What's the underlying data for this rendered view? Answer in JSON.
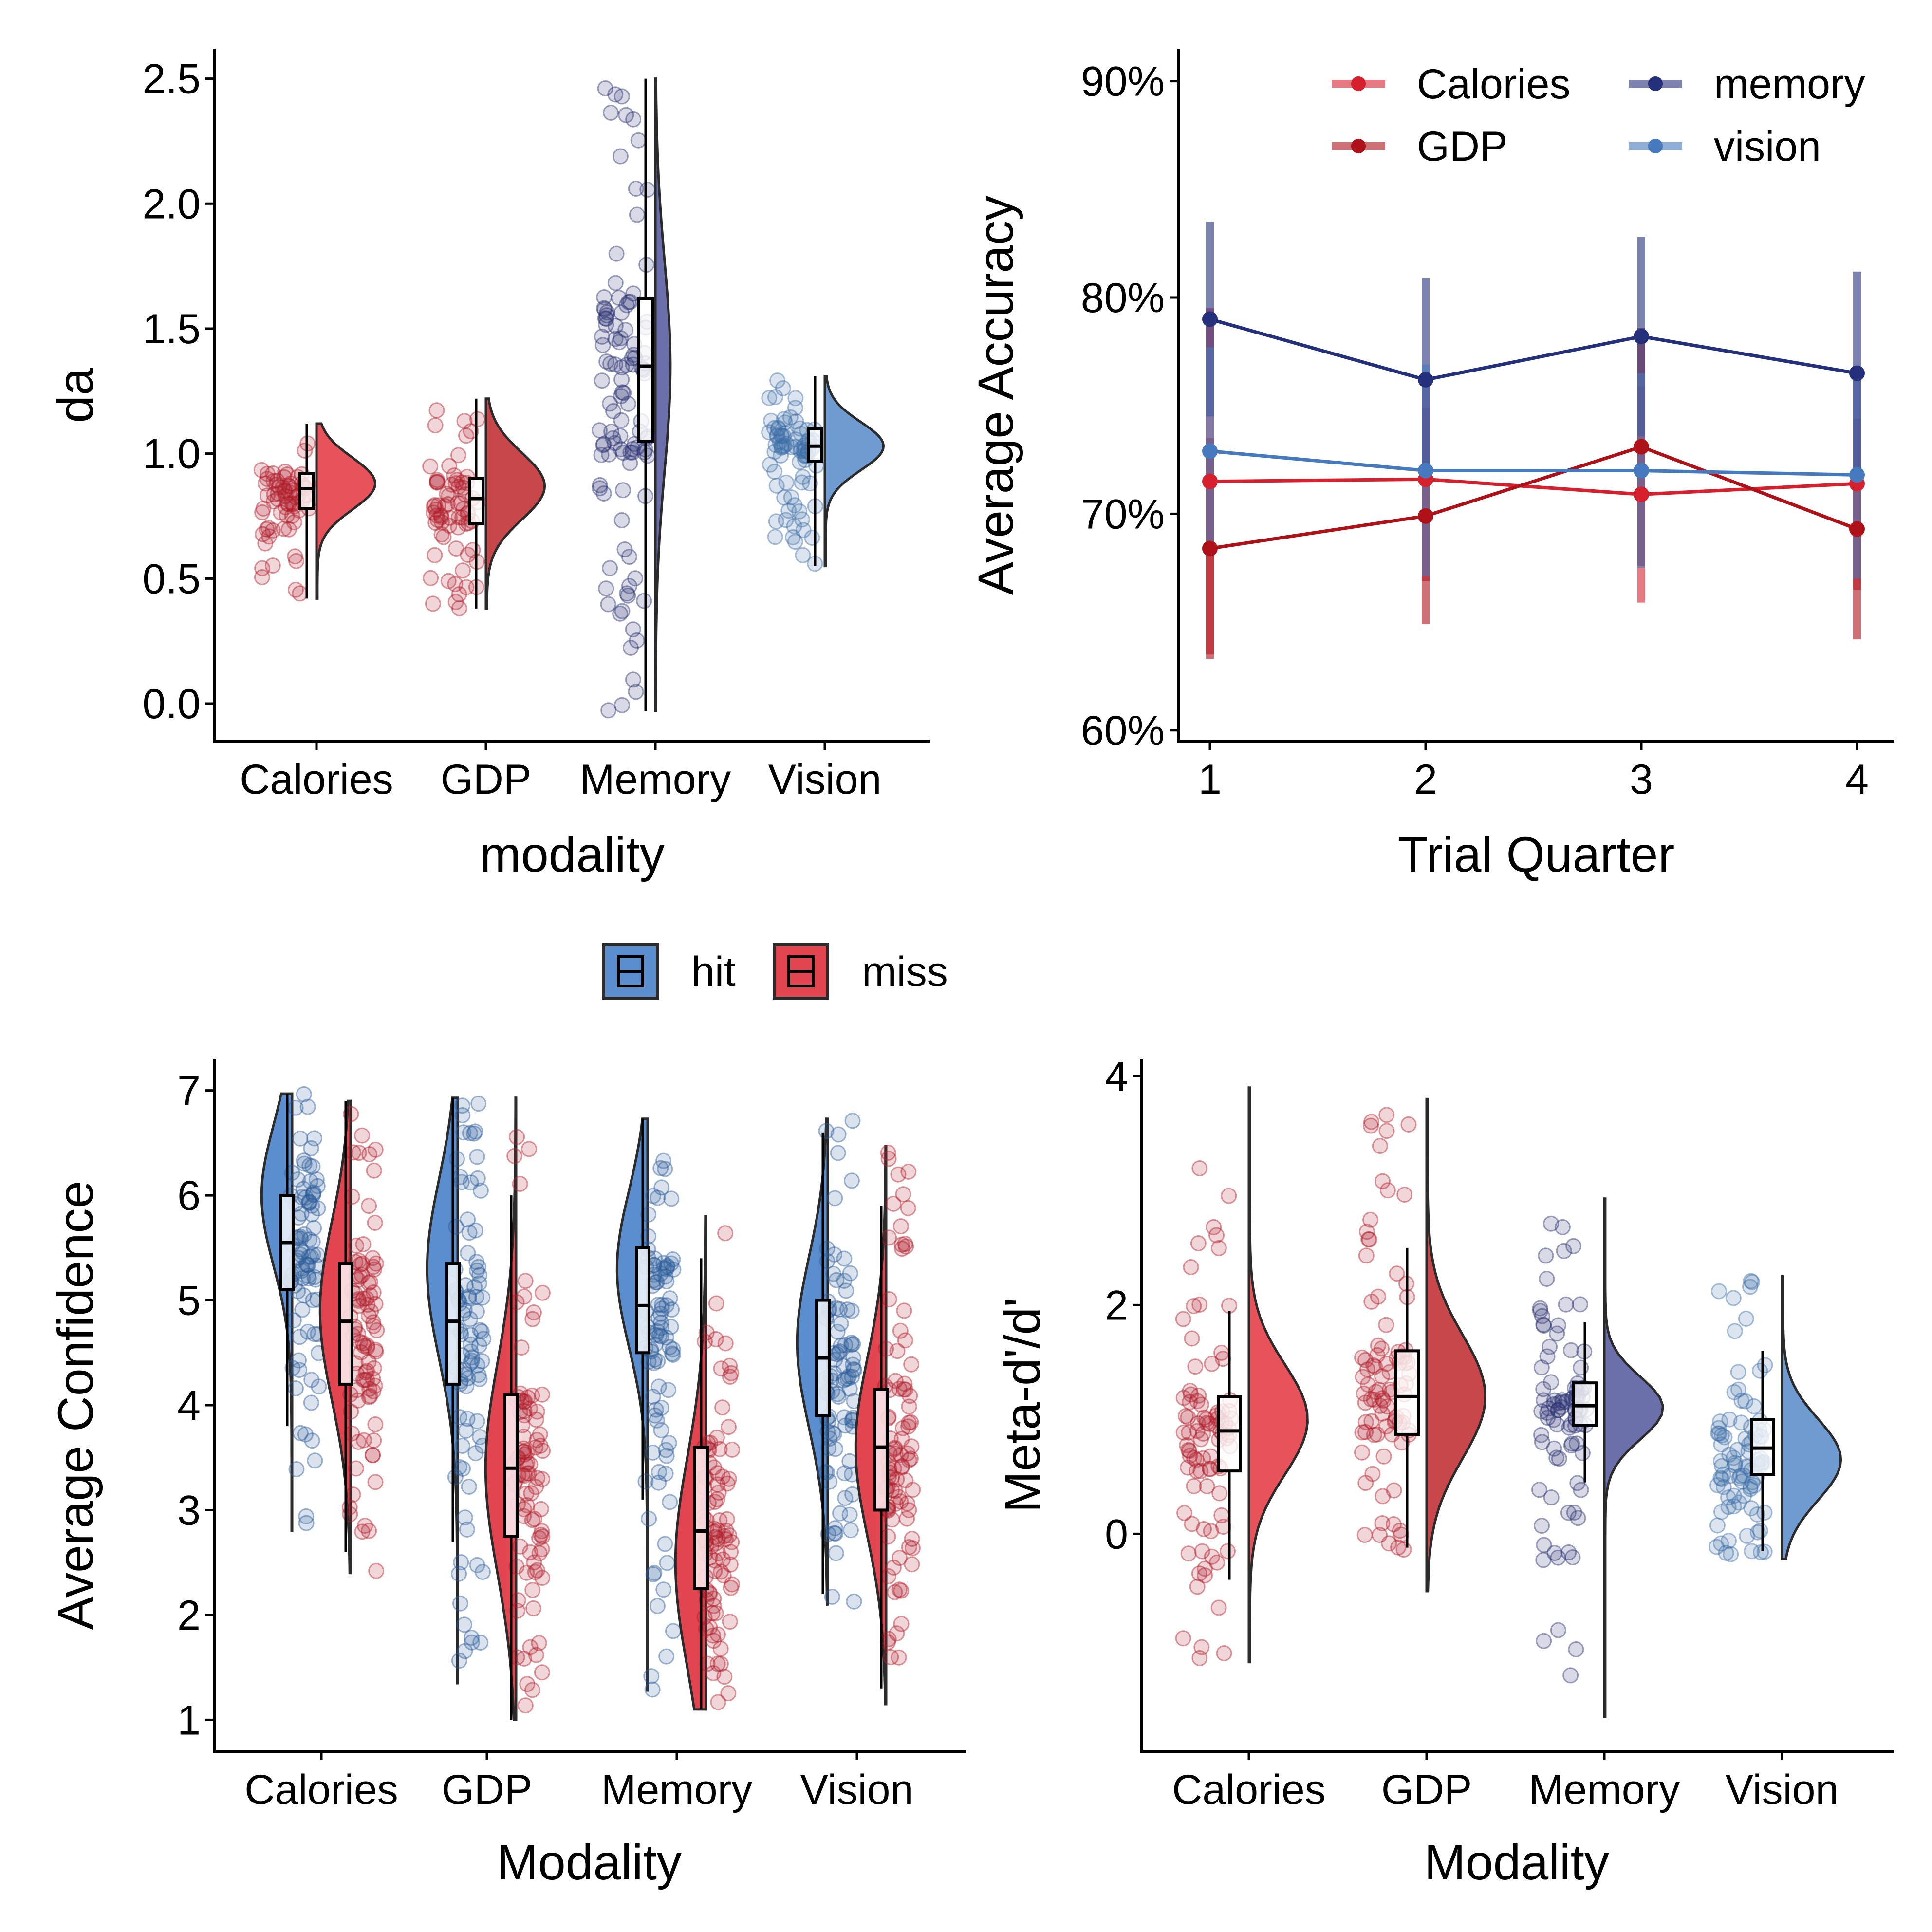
{
  "colors": {
    "calories": "#E8525A",
    "gdp": "#C8474B",
    "memory": "#6B6FAA",
    "vision": "#6F9BD0",
    "hit": "#5B8ECF",
    "miss": "#E24450",
    "line_calories": "#D7202E",
    "line_gdp": "#AE1117",
    "line_memory": "#25307D",
    "line_vision": "#4679BE"
  },
  "chart_data": [
    {
      "type": "raincloud",
      "xlabel": "modality",
      "ylabel": "da",
      "categories": [
        "Calories",
        "GDP",
        "Memory",
        "Vision"
      ],
      "ylim": [
        -0.15,
        2.62
      ],
      "yticks": [
        0.0,
        0.5,
        1.0,
        1.5,
        2.0,
        2.5
      ],
      "ytick_labels": [
        "0.0",
        "0.5",
        "1.0",
        "1.5",
        "2.0",
        "2.5"
      ],
      "series": [
        {
          "category": "Calories",
          "color_key": "calories",
          "min": 0.42,
          "q1": 0.78,
          "median": 0.86,
          "q3": 0.92,
          "max": 1.12,
          "violin_min": 0.42,
          "violin_max": 1.12,
          "mode": 0.88,
          "n_points": 70
        },
        {
          "category": "GDP",
          "color_key": "gdp",
          "min": 0.38,
          "q1": 0.72,
          "median": 0.82,
          "q3": 0.9,
          "max": 1.22,
          "violin_min": 0.38,
          "violin_max": 1.22,
          "mode": 0.87,
          "n_points": 70
        },
        {
          "category": "Memory",
          "color_key": "memory",
          "min": -0.03,
          "q1": 1.05,
          "median": 1.35,
          "q3": 1.62,
          "max": 2.5,
          "violin_min": -0.03,
          "violin_max": 2.5,
          "mode": 1.35,
          "n_points": 110
        },
        {
          "category": "Vision",
          "color_key": "vision",
          "min": 0.55,
          "q1": 0.97,
          "median": 1.03,
          "q3": 1.1,
          "max": 1.31,
          "violin_min": 0.55,
          "violin_max": 1.31,
          "mode": 1.03,
          "n_points": 80
        }
      ]
    },
    {
      "type": "line",
      "xlabel": "Trial Quarter",
      "ylabel": "Average Accuracy",
      "x": [
        1,
        2,
        3,
        4
      ],
      "ylim": [
        59.5,
        91.5
      ],
      "yticks": [
        60,
        70,
        80,
        90
      ],
      "ytick_labels": [
        "60%",
        "70%",
        "80%",
        "90%"
      ],
      "xticks": [
        1,
        2,
        3,
        4
      ],
      "xtick_labels": [
        "1",
        "2",
        "3",
        "4"
      ],
      "legend_position": "top-right",
      "series": [
        {
          "name": "Calories",
          "color_key": "line_calories",
          "values": [
            71.5,
            71.6,
            70.9,
            71.4
          ],
          "lower": [
            63.5,
            66.9,
            65.9,
            66.5
          ],
          "upper": [
            79.5,
            76.3,
            75.9,
            76.3
          ]
        },
        {
          "name": "GDP",
          "color_key": "line_gdp",
          "values": [
            68.4,
            69.9,
            73.1,
            69.3
          ],
          "lower": [
            63.3,
            64.9,
            67.6,
            64.2
          ],
          "upper": [
            73.5,
            74.9,
            78.6,
            74.4
          ]
        },
        {
          "name": "memory",
          "color_key": "line_memory",
          "values": [
            79.0,
            76.2,
            78.2,
            76.5
          ],
          "lower": [
            74.5,
            71.5,
            73.6,
            71.8
          ],
          "upper": [
            83.5,
            80.9,
            82.8,
            81.2
          ]
        },
        {
          "name": "vision",
          "color_key": "line_vision",
          "values": [
            72.9,
            72.0,
            72.0,
            71.8
          ],
          "lower": [
            68.1,
            67.1,
            67.5,
            67.0
          ],
          "upper": [
            77.7,
            76.9,
            76.5,
            76.6
          ]
        }
      ]
    },
    {
      "type": "raincloud",
      "xlabel": "Modality",
      "ylabel": "Average Confidence",
      "categories": [
        "Calories",
        "GDP",
        "Memory",
        "Vision"
      ],
      "ylim": [
        0.7,
        7.3
      ],
      "yticks": [
        1,
        2,
        3,
        4,
        5,
        6,
        7
      ],
      "ytick_labels": [
        "1",
        "2",
        "3",
        "4",
        "5",
        "6",
        "7"
      ],
      "legend": [
        {
          "label": "hit",
          "color_key": "hit"
        },
        {
          "label": "miss",
          "color_key": "miss"
        }
      ],
      "legend_position": "top",
      "series": [
        {
          "name": "hit",
          "category": "Calories",
          "color_key": "hit",
          "min": 3.8,
          "q1": 5.1,
          "median": 5.55,
          "q3": 6.0,
          "max": 6.97,
          "violin_min": 2.8,
          "violin_max": 6.97,
          "mode": 6.0
        },
        {
          "name": "miss",
          "category": "Calories",
          "color_key": "miss",
          "min": 2.6,
          "q1": 4.2,
          "median": 4.8,
          "q3": 5.35,
          "max": 6.9,
          "violin_min": 2.4,
          "violin_max": 6.9,
          "mode": 4.9
        },
        {
          "name": "hit",
          "category": "GDP",
          "color_key": "hit",
          "min": 2.7,
          "q1": 4.2,
          "median": 4.8,
          "q3": 5.35,
          "max": 6.93,
          "violin_min": 1.35,
          "violin_max": 6.93,
          "mode": 5.3
        },
        {
          "name": "miss",
          "category": "GDP",
          "color_key": "miss",
          "min": 1.0,
          "q1": 2.75,
          "median": 3.4,
          "q3": 4.1,
          "max": 6.0,
          "violin_min": 1.0,
          "violin_max": 6.93,
          "mode": 3.4
        },
        {
          "name": "hit",
          "category": "Memory",
          "color_key": "hit",
          "min": 3.1,
          "q1": 4.5,
          "median": 4.95,
          "q3": 5.5,
          "max": 6.73,
          "violin_min": 1.28,
          "violin_max": 6.73,
          "mode": 5.3
        },
        {
          "name": "miss",
          "category": "Memory",
          "color_key": "miss",
          "min": 1.1,
          "q1": 2.25,
          "median": 2.8,
          "q3": 3.6,
          "max": 5.4,
          "violin_min": 1.1,
          "violin_max": 5.8,
          "mode": 2.5
        },
        {
          "name": "hit",
          "category": "Vision",
          "color_key": "hit",
          "min": 2.2,
          "q1": 3.9,
          "median": 4.45,
          "q3": 5.0,
          "max": 6.6,
          "violin_min": 2.1,
          "violin_max": 6.73,
          "mode": 4.6
        },
        {
          "name": "miss",
          "category": "Vision",
          "color_key": "miss",
          "min": 1.3,
          "q1": 3.0,
          "median": 3.6,
          "q3": 4.15,
          "max": 5.9,
          "violin_min": 1.15,
          "violin_max": 6.47,
          "mode": 3.6
        }
      ]
    },
    {
      "type": "raincloud",
      "xlabel": "Modality",
      "ylabel": "Meta-d'/d'",
      "categories": [
        "Calories",
        "GDP",
        "Memory",
        "Vision"
      ],
      "ylim": [
        -1.9,
        4.15
      ],
      "yticks": [
        0,
        2,
        4
      ],
      "ytick_labels": [
        "0",
        "2",
        "4"
      ],
      "series": [
        {
          "category": "Calories",
          "color_key": "calories",
          "min": -0.4,
          "q1": 0.55,
          "median": 0.9,
          "q3": 1.2,
          "max": 1.95,
          "violin_min": -1.12,
          "violin_max": 3.9,
          "mode": 1.0
        },
        {
          "category": "GDP",
          "color_key": "gdp",
          "min": -0.12,
          "q1": 0.87,
          "median": 1.2,
          "q3": 1.6,
          "max": 2.5,
          "violin_min": -0.5,
          "violin_max": 3.8,
          "mode": 1.2
        },
        {
          "category": "Memory",
          "color_key": "memory",
          "min": 0.45,
          "q1": 0.95,
          "median": 1.12,
          "q3": 1.32,
          "max": 1.85,
          "violin_min": -1.6,
          "violin_max": 2.93,
          "mode": 1.1
        },
        {
          "category": "Vision",
          "color_key": "vision",
          "min": -0.15,
          "q1": 0.52,
          "median": 0.75,
          "q3": 1.0,
          "max": 1.6,
          "violin_min": -0.22,
          "violin_max": 2.25,
          "mode": 0.65
        }
      ]
    }
  ]
}
